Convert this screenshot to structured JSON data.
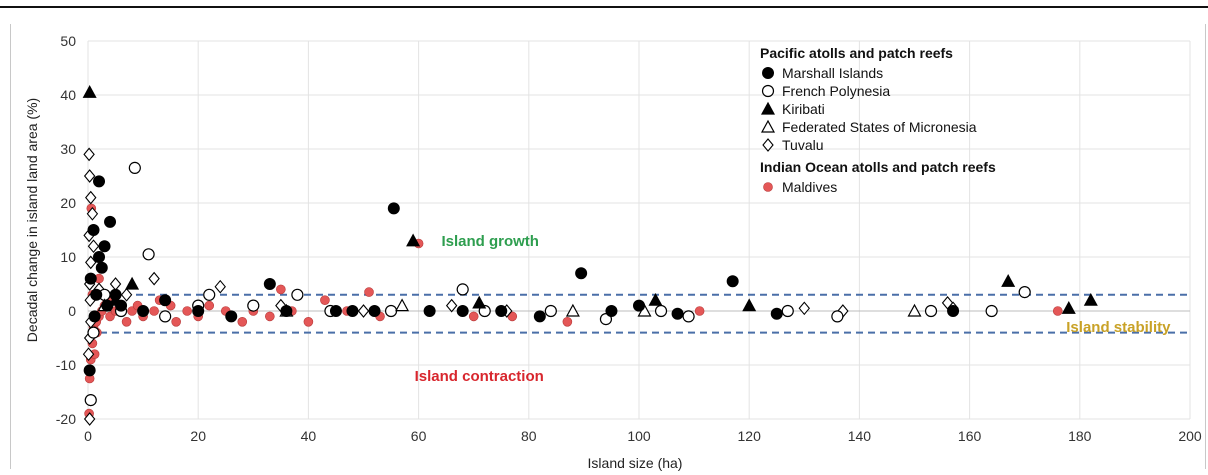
{
  "chart_data": {
    "type": "scatter",
    "title": "",
    "xlabel": "Island size (ha)",
    "ylabel": "Decadal change in island land area (%)",
    "xlim": [
      0,
      200
    ],
    "ylim": [
      -20,
      50
    ],
    "xticks": [
      "0",
      "20",
      "40",
      "60",
      "80",
      "100",
      "120",
      "140",
      "160",
      "180",
      "200"
    ],
    "yticks": [
      "-20",
      "-10",
      "0",
      "10",
      "20",
      "30",
      "40",
      "50"
    ],
    "grid": true,
    "stability_band": [
      -4,
      3
    ],
    "legend": {
      "placement": "top-right",
      "groups": [
        {
          "heading": "Pacific atolls and patch reefs",
          "entries": [
            {
              "name": "Marshall Islands",
              "marker": "filled-circle"
            },
            {
              "name": "French Polynesia",
              "marker": "open-circle"
            },
            {
              "name": "Kiribati",
              "marker": "filled-triangle"
            },
            {
              "name": "Federated States of Micronesia",
              "marker": "open-triangle"
            },
            {
              "name": "Tuvalu",
              "marker": "open-diamond"
            }
          ]
        },
        {
          "heading": "Indian Ocean atolls and patch reefs",
          "entries": [
            {
              "name": "Maldives",
              "marker": "red-circle"
            }
          ]
        }
      ]
    },
    "annotations": [
      {
        "text": "Island growth",
        "x": 73,
        "y": 13,
        "color": "#2e9e4f"
      },
      {
        "text": "Island stability",
        "x": 187,
        "y": -3,
        "color": "#c9a227"
      },
      {
        "text": "Island contraction",
        "x": 71,
        "y": -12,
        "color": "#d8262d"
      }
    ],
    "series": [
      {
        "name": "Marshall Islands",
        "marker": "filled-circle",
        "color": "#000000",
        "points": [
          [
            0.3,
            -11
          ],
          [
            1.2,
            -1
          ],
          [
            1.5,
            3
          ],
          [
            2,
            24
          ],
          [
            3,
            12
          ],
          [
            1,
            15
          ],
          [
            2.5,
            8
          ],
          [
            4,
            16.5
          ],
          [
            5,
            3
          ],
          [
            0.5,
            6
          ],
          [
            2,
            10
          ],
          [
            3.5,
            1
          ],
          [
            33,
            5
          ],
          [
            55.5,
            19
          ],
          [
            89.5,
            7
          ],
          [
            117,
            5.5
          ],
          [
            52,
            0
          ],
          [
            62,
            0
          ],
          [
            68,
            0
          ],
          [
            75,
            0
          ],
          [
            95,
            0
          ],
          [
            107,
            -0.5
          ],
          [
            125,
            -0.5
          ],
          [
            157,
            0
          ],
          [
            100,
            1
          ],
          [
            45,
            0
          ],
          [
            26,
            -1
          ],
          [
            6,
            1
          ],
          [
            10,
            0
          ],
          [
            14,
            2
          ],
          [
            20,
            0
          ],
          [
            36,
            0
          ],
          [
            48,
            0
          ],
          [
            82,
            -1
          ]
        ]
      },
      {
        "name": "French Polynesia",
        "marker": "open-circle",
        "color": "#000000",
        "points": [
          [
            8.5,
            26.5
          ],
          [
            11,
            10.5
          ],
          [
            0.5,
            -16.5
          ],
          [
            1,
            -4
          ],
          [
            3,
            3
          ],
          [
            6,
            0
          ],
          [
            14,
            -1
          ],
          [
            22,
            3
          ],
          [
            30,
            1
          ],
          [
            38,
            3
          ],
          [
            44,
            0
          ],
          [
            55,
            0
          ],
          [
            68,
            4
          ],
          [
            72,
            0
          ],
          [
            84,
            0
          ],
          [
            94,
            -1.5
          ],
          [
            104,
            0
          ],
          [
            109,
            -1
          ],
          [
            127,
            0
          ],
          [
            136,
            -1
          ],
          [
            153,
            0
          ],
          [
            164,
            0
          ],
          [
            170,
            3.5
          ],
          [
            20,
            1
          ]
        ]
      },
      {
        "name": "Kiribati",
        "marker": "filled-triangle",
        "color": "#000000",
        "points": [
          [
            0.3,
            40.5
          ],
          [
            59,
            13
          ],
          [
            8,
            5
          ],
          [
            5,
            2
          ],
          [
            71,
            1.5
          ],
          [
            103,
            2
          ],
          [
            120,
            1
          ],
          [
            167,
            5.5
          ],
          [
            178,
            0.5
          ],
          [
            182,
            2
          ]
        ]
      },
      {
        "name": "Federated States of Micronesia",
        "marker": "open-triangle",
        "color": "#000000",
        "points": [
          [
            3,
            1
          ],
          [
            36,
            0
          ],
          [
            57,
            1
          ],
          [
            88,
            0
          ],
          [
            101,
            0
          ],
          [
            150,
            0
          ]
        ]
      },
      {
        "name": "Tuvalu",
        "marker": "open-diamond",
        "color": "#000000",
        "points": [
          [
            0.2,
            29
          ],
          [
            0.3,
            25
          ],
          [
            0.5,
            21
          ],
          [
            0.8,
            18
          ],
          [
            0.2,
            14
          ],
          [
            1,
            12
          ],
          [
            0.5,
            9
          ],
          [
            0.3,
            5
          ],
          [
            0.4,
            2
          ],
          [
            0.5,
            -2
          ],
          [
            0.3,
            -5
          ],
          [
            0.1,
            -8
          ],
          [
            0.3,
            -20
          ],
          [
            2,
            4
          ],
          [
            5,
            5
          ],
          [
            7,
            3
          ],
          [
            12,
            6
          ],
          [
            24,
            4.5
          ],
          [
            35,
            1
          ],
          [
            50,
            0
          ],
          [
            66,
            1
          ],
          [
            76,
            0
          ],
          [
            130,
            0.5
          ],
          [
            156,
            1.5
          ],
          [
            157,
            0.5
          ],
          [
            137,
            0
          ]
        ]
      },
      {
        "name": "Maldives",
        "marker": "red-circle",
        "color": "#e45757",
        "points": [
          [
            0.3,
            -12.5
          ],
          [
            0.5,
            -9
          ],
          [
            0.8,
            -6
          ],
          [
            1,
            -3
          ],
          [
            1.5,
            -2
          ],
          [
            2,
            -1
          ],
          [
            2.5,
            0
          ],
          [
            3,
            1
          ],
          [
            3.5,
            2
          ],
          [
            4,
            -1
          ],
          [
            5,
            0
          ],
          [
            6,
            1
          ],
          [
            7,
            -2
          ],
          [
            8,
            0
          ],
          [
            9,
            1
          ],
          [
            10,
            -1
          ],
          [
            12,
            0
          ],
          [
            13,
            2
          ],
          [
            15,
            1
          ],
          [
            16,
            -2
          ],
          [
            18,
            0
          ],
          [
            20,
            -1
          ],
          [
            22,
            1
          ],
          [
            25,
            0
          ],
          [
            28,
            -2
          ],
          [
            30,
            0
          ],
          [
            33,
            -1
          ],
          [
            35,
            4
          ],
          [
            37,
            0
          ],
          [
            40,
            -2
          ],
          [
            43,
            2
          ],
          [
            47,
            0
          ],
          [
            51,
            3.5
          ],
          [
            53,
            -1
          ],
          [
            60,
            12.5
          ],
          [
            70,
            -1
          ],
          [
            77,
            -1
          ],
          [
            87,
            -2
          ],
          [
            111,
            0
          ],
          [
            176,
            0
          ],
          [
            0.2,
            -19
          ],
          [
            0.6,
            19
          ],
          [
            1.2,
            -8
          ],
          [
            2,
            6
          ],
          [
            0.8,
            3
          ],
          [
            1.6,
            -4
          ]
        ]
      }
    ]
  }
}
